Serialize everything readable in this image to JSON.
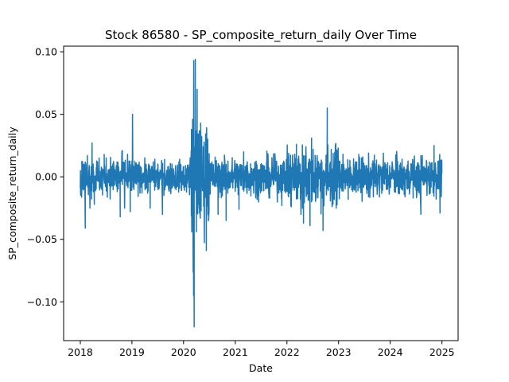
{
  "chart_data": {
    "type": "line",
    "title": "Stock 86580 - SP_composite_return_daily Over Time",
    "xlabel": "Date",
    "ylabel": "SP_composite_return_daily",
    "x_ticks": [
      "2018",
      "2019",
      "2020",
      "2021",
      "2022",
      "2023",
      "2024",
      "2025"
    ],
    "y_ticks": [
      "−0.10",
      "−0.05",
      "0.00",
      "0.05",
      "0.10"
    ],
    "xlim": [
      "2017-09-05",
      "2025-04-25"
    ],
    "ylim": [
      -0.131,
      0.1045
    ],
    "grid": false,
    "legend": "none",
    "color": "#1f77b4",
    "series": [
      {
        "x": [
          "2018-01-01",
          "2018-01-20",
          "2018-02-05",
          "2018-02-20",
          "2018-03-10",
          "2018-03-25",
          "2018-04-10",
          "2018-05-01",
          "2018-06-01",
          "2018-07-01",
          "2018-08-01",
          "2018-09-01",
          "2018-10-10",
          "2018-10-25",
          "2018-11-10",
          "2018-12-01",
          "2018-12-20",
          "2019-01-05",
          "2019-02-01",
          "2019-03-01",
          "2019-05-10",
          "2019-06-01",
          "2019-08-05",
          "2019-08-20",
          "2019-10-01",
          "2019-12-01",
          "2020-01-15",
          "2020-02-15",
          "2020-02-28",
          "2020-03-05",
          "2020-03-09",
          "2020-03-12",
          "2020-03-13",
          "2020-03-16",
          "2020-03-24",
          "2020-04-01",
          "2020-04-06",
          "2020-04-15",
          "2020-05-01",
          "2020-06-10",
          "2020-06-20",
          "2020-09-01",
          "2020-10-28",
          "2020-11-10",
          "2021-01-27",
          "2021-03-01",
          "2021-06-01",
          "2021-09-01",
          "2021-11-26",
          "2022-01-10",
          "2022-02-01",
          "2022-03-09",
          "2022-04-10",
          "2022-04-28",
          "2022-05-15",
          "2022-06-13",
          "2022-06-24",
          "2022-08-01",
          "2022-09-13",
          "2022-10-13",
          "2022-11-10",
          "2022-12-15",
          "2023-02-01",
          "2023-03-10",
          "2023-05-01",
          "2023-08-01",
          "2023-10-01",
          "2023-11-14",
          "2024-01-15",
          "2024-04-15",
          "2024-06-01",
          "2024-08-05",
          "2024-08-15",
          "2024-09-15",
          "2024-11-06",
          "2024-12-18",
          "2024-12-31"
        ],
        "y": [
          -0.005,
          0.01,
          -0.041,
          0.017,
          -0.025,
          0.027,
          -0.022,
          0.009,
          -0.01,
          0.008,
          -0.007,
          0.006,
          -0.032,
          0.021,
          -0.025,
          0.018,
          -0.028,
          0.05,
          0.011,
          -0.006,
          -0.025,
          0.012,
          -0.03,
          0.014,
          -0.012,
          0.008,
          -0.008,
          0.01,
          -0.044,
          0.046,
          -0.076,
          -0.095,
          0.093,
          -0.12,
          0.094,
          -0.044,
          0.07,
          -0.022,
          0.028,
          -0.059,
          0.03,
          -0.03,
          -0.035,
          0.012,
          -0.026,
          0.02,
          -0.013,
          -0.017,
          -0.023,
          0.016,
          -0.02,
          0.026,
          -0.03,
          -0.037,
          0.024,
          -0.039,
          0.031,
          0.015,
          -0.043,
          0.055,
          0.022,
          -0.025,
          0.018,
          -0.018,
          0.012,
          -0.016,
          -0.014,
          0.019,
          0.012,
          -0.016,
          0.01,
          -0.03,
          0.017,
          0.011,
          0.025,
          -0.029,
          0.011
        ]
      }
    ]
  }
}
